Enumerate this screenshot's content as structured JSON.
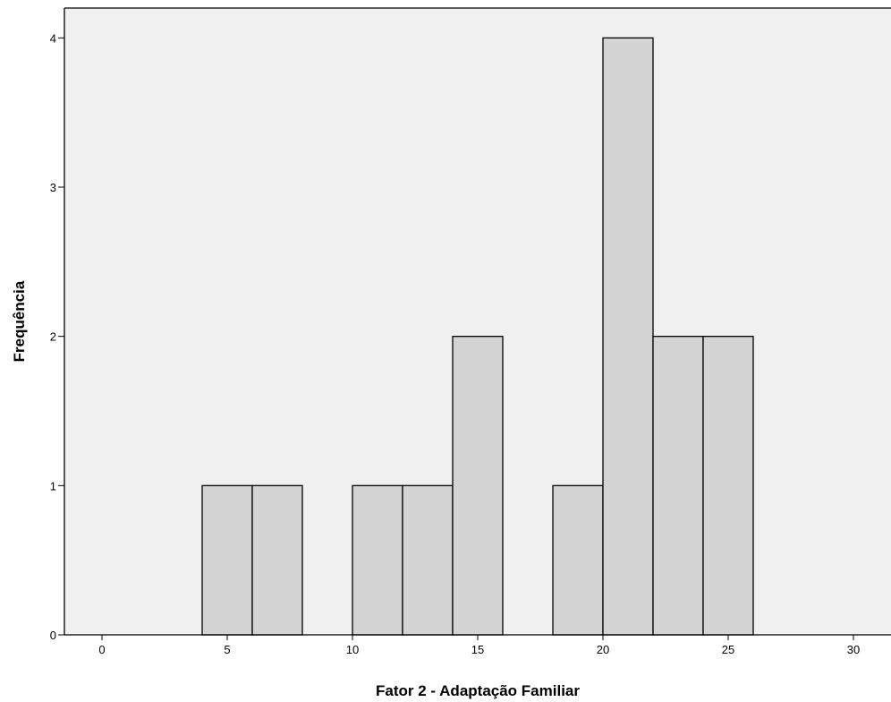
{
  "chart_data": {
    "type": "bar",
    "subtype": "histogram",
    "xlabel": "Fator 2 - Adaptação Familiar",
    "ylabel": "Frequência",
    "xlim": [
      -1.5,
      31.5
    ],
    "ylim": [
      0,
      4.2
    ],
    "x_ticks": [
      0,
      5,
      10,
      15,
      20,
      25,
      30
    ],
    "y_ticks": [
      0,
      1,
      2,
      3,
      4
    ],
    "bins": [
      {
        "start": 4,
        "end": 6,
        "count": 1
      },
      {
        "start": 6,
        "end": 8,
        "count": 1
      },
      {
        "start": 10,
        "end": 12,
        "count": 1
      },
      {
        "start": 12,
        "end": 14,
        "count": 1
      },
      {
        "start": 14,
        "end": 16,
        "count": 2
      },
      {
        "start": 18,
        "end": 20,
        "count": 1
      },
      {
        "start": 20,
        "end": 22,
        "count": 4
      },
      {
        "start": 22,
        "end": 24,
        "count": 2
      },
      {
        "start": 24,
        "end": 26,
        "count": 2
      }
    ],
    "grid": false,
    "colors": {
      "background": "#f0f0f0",
      "bar_fill": "#d3d3d3",
      "bar_stroke": "#000000"
    }
  }
}
